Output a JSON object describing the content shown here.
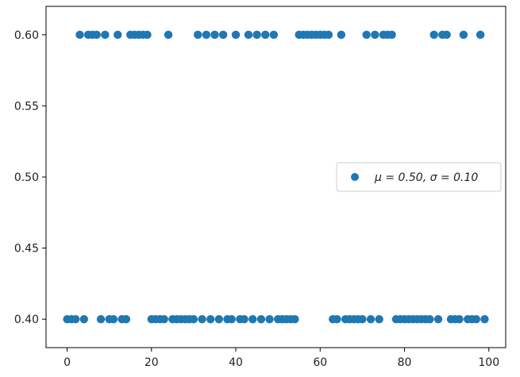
{
  "chart_data": {
    "type": "scatter",
    "title": "",
    "xlabel": "",
    "ylabel": "",
    "xlim": [
      -5,
      104
    ],
    "ylim": [
      0.38,
      0.62
    ],
    "xticks": [
      0,
      20,
      40,
      60,
      80,
      100
    ],
    "yticks": [
      0.4,
      0.45,
      0.5,
      0.55,
      0.6
    ],
    "xtick_labels": [
      "0",
      "20",
      "40",
      "60",
      "80",
      "100"
    ],
    "ytick_labels": [
      "0.40",
      "0.45",
      "0.50",
      "0.55",
      "0.60"
    ],
    "grid": false,
    "legend_position": "center-right",
    "series": [
      {
        "name": "μ = 0.50,  σ = 0.10",
        "color": "#1f77b4",
        "x": [
          0,
          1,
          2,
          4,
          8,
          10,
          11,
          13,
          14,
          20,
          21,
          22,
          23,
          25,
          26,
          27,
          28,
          29,
          30,
          32,
          34,
          36,
          38,
          39,
          41,
          42,
          44,
          46,
          48,
          50,
          51,
          52,
          53,
          54,
          63,
          64,
          66,
          67,
          68,
          69,
          70,
          72,
          74,
          78,
          79,
          80,
          81,
          82,
          83,
          84,
          85,
          86,
          88,
          91,
          92,
          93,
          95,
          96,
          97,
          99,
          3,
          5,
          6,
          7,
          9,
          12,
          15,
          16,
          17,
          18,
          19,
          24,
          31,
          33,
          35,
          37,
          40,
          43,
          45,
          47,
          49,
          55,
          56,
          57,
          58,
          59,
          60,
          61,
          62,
          65,
          71,
          73,
          75,
          76,
          77,
          87,
          89,
          90,
          94,
          98
        ],
        "y": [
          0.4,
          0.4,
          0.4,
          0.4,
          0.4,
          0.4,
          0.4,
          0.4,
          0.4,
          0.4,
          0.4,
          0.4,
          0.4,
          0.4,
          0.4,
          0.4,
          0.4,
          0.4,
          0.4,
          0.4,
          0.4,
          0.4,
          0.4,
          0.4,
          0.4,
          0.4,
          0.4,
          0.4,
          0.4,
          0.4,
          0.4,
          0.4,
          0.4,
          0.4,
          0.4,
          0.4,
          0.4,
          0.4,
          0.4,
          0.4,
          0.4,
          0.4,
          0.4,
          0.4,
          0.4,
          0.4,
          0.4,
          0.4,
          0.4,
          0.4,
          0.4,
          0.4,
          0.4,
          0.4,
          0.4,
          0.4,
          0.4,
          0.4,
          0.4,
          0.4,
          0.6,
          0.6,
          0.6,
          0.6,
          0.6,
          0.6,
          0.6,
          0.6,
          0.6,
          0.6,
          0.6,
          0.6,
          0.6,
          0.6,
          0.6,
          0.6,
          0.6,
          0.6,
          0.6,
          0.6,
          0.6,
          0.6,
          0.6,
          0.6,
          0.6,
          0.6,
          0.6,
          0.6,
          0.6,
          0.6,
          0.6,
          0.6,
          0.6,
          0.6,
          0.6,
          0.6,
          0.6,
          0.6,
          0.6,
          0.6
        ]
      }
    ]
  }
}
